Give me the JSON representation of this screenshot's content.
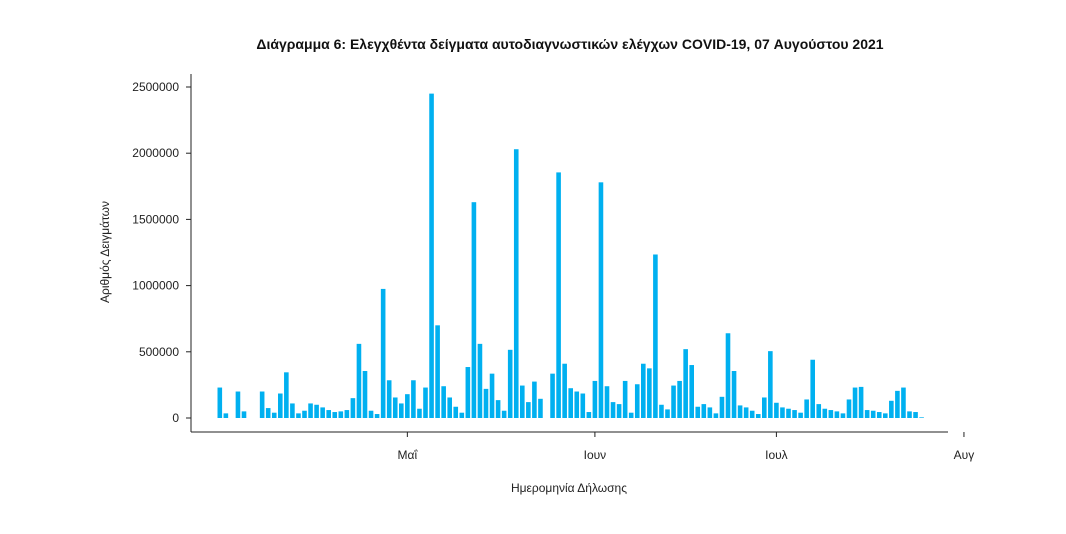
{
  "chart_data": {
    "type": "bar",
    "title": "Διάγραμμα 6: Ελεγχθέντα δείγματα αυτοδιαγνωστικών ελέγχων COVID-19, 07 Αυγούστου 2021",
    "xlabel": "Ημερομηνία Δήλωσης",
    "ylabel": "Αριθμός Δειγμάτων",
    "ylim": [
      0,
      2500000
    ],
    "yticks": [
      0,
      500000,
      1000000,
      1500000,
      2000000,
      2500000
    ],
    "ytick_labels": [
      "0",
      "500000",
      "1000000",
      "1500000",
      "2000000",
      "2500000"
    ],
    "xtick_labels": [
      "Μαΐ",
      "Ιουν",
      "Ιουλ",
      "Αυγ"
    ],
    "xtick_index": [
      31,
      62,
      92,
      123
    ],
    "start_date": "2021-04-06",
    "color": "#00b0f0",
    "grid": false,
    "values": [
      230000,
      35000,
      0,
      200000,
      50000,
      0,
      0,
      200000,
      75000,
      40000,
      185000,
      345000,
      110000,
      35000,
      55000,
      110000,
      100000,
      80000,
      60000,
      45000,
      50000,
      60000,
      150000,
      560000,
      355000,
      55000,
      30000,
      975000,
      285000,
      155000,
      110000,
      180000,
      285000,
      70000,
      230000,
      2450000,
      700000,
      240000,
      155000,
      85000,
      40000,
      385000,
      1630000,
      560000,
      220000,
      335000,
      135000,
      55000,
      515000,
      2030000,
      245000,
      120000,
      275000,
      145000,
      0,
      335000,
      1855000,
      410000,
      225000,
      200000,
      185000,
      45000,
      280000,
      1780000,
      240000,
      120000,
      105000,
      280000,
      40000,
      255000,
      410000,
      375000,
      1235000,
      100000,
      65000,
      245000,
      280000,
      520000,
      400000,
      85000,
      105000,
      80000,
      35000,
      160000,
      640000,
      355000,
      95000,
      80000,
      55000,
      30000,
      155000,
      505000,
      115000,
      80000,
      70000,
      60000,
      40000,
      140000,
      440000,
      105000,
      70000,
      60000,
      50000,
      35000,
      140000,
      230000,
      235000,
      60000,
      55000,
      45000,
      35000,
      130000,
      205000,
      230000,
      50000,
      45000,
      5000
    ]
  }
}
